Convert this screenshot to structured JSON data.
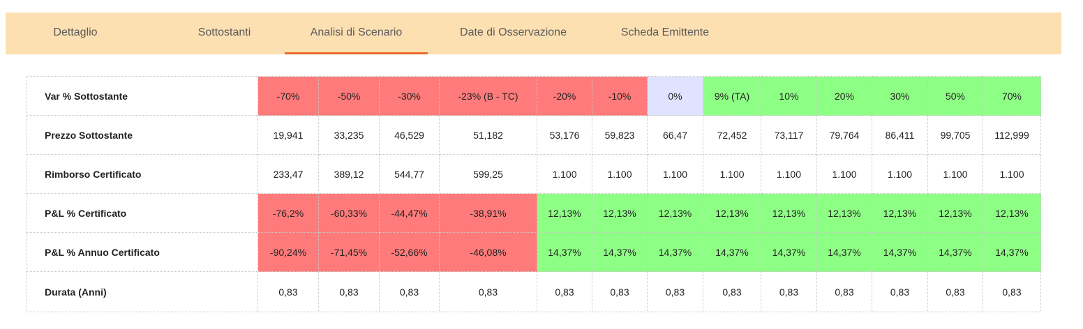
{
  "tabs": [
    {
      "label": "Dettaglio",
      "active": false
    },
    {
      "label": "Sottostanti",
      "active": false
    },
    {
      "label": "Analisi di Scenario",
      "active": true
    },
    {
      "label": "Date di Osservazione",
      "active": false
    },
    {
      "label": "Scheda Emittente",
      "active": false
    }
  ],
  "colors": {
    "tabbar_bg": "#fde0b2",
    "tab_active_underline": "#ee6a2c",
    "negative": "#ff7b7b",
    "positive": "#8eff85",
    "neutral": "#dfe3ff"
  },
  "table": {
    "rows": [
      {
        "label": "Var % Sottostante",
        "cells": [
          "-70%",
          "-50%",
          "-30%",
          "-23% (B - TC)",
          "-20%",
          "-10%",
          "0%",
          "9% (TA)",
          "10%",
          "20%",
          "30%",
          "50%",
          "70%"
        ],
        "status": [
          "neg",
          "neg",
          "neg",
          "neg",
          "neg",
          "neg",
          "neutral",
          "pos",
          "pos",
          "pos",
          "pos",
          "pos",
          "pos"
        ]
      },
      {
        "label": "Prezzo Sottostante",
        "cells": [
          "19,941",
          "33,235",
          "46,529",
          "51,182",
          "53,176",
          "59,823",
          "66,47",
          "72,452",
          "73,117",
          "79,764",
          "86,411",
          "99,705",
          "112,999"
        ],
        "status": [
          "none",
          "none",
          "none",
          "none",
          "none",
          "none",
          "none",
          "none",
          "none",
          "none",
          "none",
          "none",
          "none"
        ]
      },
      {
        "label": "Rimborso Certificato",
        "cells": [
          "233,47",
          "389,12",
          "544,77",
          "599,25",
          "1.100",
          "1.100",
          "1.100",
          "1.100",
          "1.100",
          "1.100",
          "1.100",
          "1.100",
          "1.100"
        ],
        "status": [
          "none",
          "none",
          "none",
          "none",
          "none",
          "none",
          "none",
          "none",
          "none",
          "none",
          "none",
          "none",
          "none"
        ]
      },
      {
        "label": "P&L % Certificato",
        "cells": [
          "-76,2%",
          "-60,33%",
          "-44,47%",
          "-38,91%",
          "12,13%",
          "12,13%",
          "12,13%",
          "12,13%",
          "12,13%",
          "12,13%",
          "12,13%",
          "12,13%",
          "12,13%"
        ],
        "status": [
          "neg",
          "neg",
          "neg",
          "neg",
          "pos",
          "pos",
          "pos",
          "pos",
          "pos",
          "pos",
          "pos",
          "pos",
          "pos"
        ]
      },
      {
        "label": "P&L % Annuo Certificato",
        "cells": [
          "-90,24%",
          "-71,45%",
          "-52,66%",
          "-46,08%",
          "14,37%",
          "14,37%",
          "14,37%",
          "14,37%",
          "14,37%",
          "14,37%",
          "14,37%",
          "14,37%",
          "14,37%"
        ],
        "status": [
          "neg",
          "neg",
          "neg",
          "neg",
          "pos",
          "pos",
          "pos",
          "pos",
          "pos",
          "pos",
          "pos",
          "pos",
          "pos"
        ]
      },
      {
        "label": "Durata (Anni)",
        "cells": [
          "0,83",
          "0,83",
          "0,83",
          "0,83",
          "0,83",
          "0,83",
          "0,83",
          "0,83",
          "0,83",
          "0,83",
          "0,83",
          "0,83",
          "0,83"
        ],
        "status": [
          "none",
          "none",
          "none",
          "none",
          "none",
          "none",
          "none",
          "none",
          "none",
          "none",
          "none",
          "none",
          "none"
        ]
      }
    ]
  }
}
